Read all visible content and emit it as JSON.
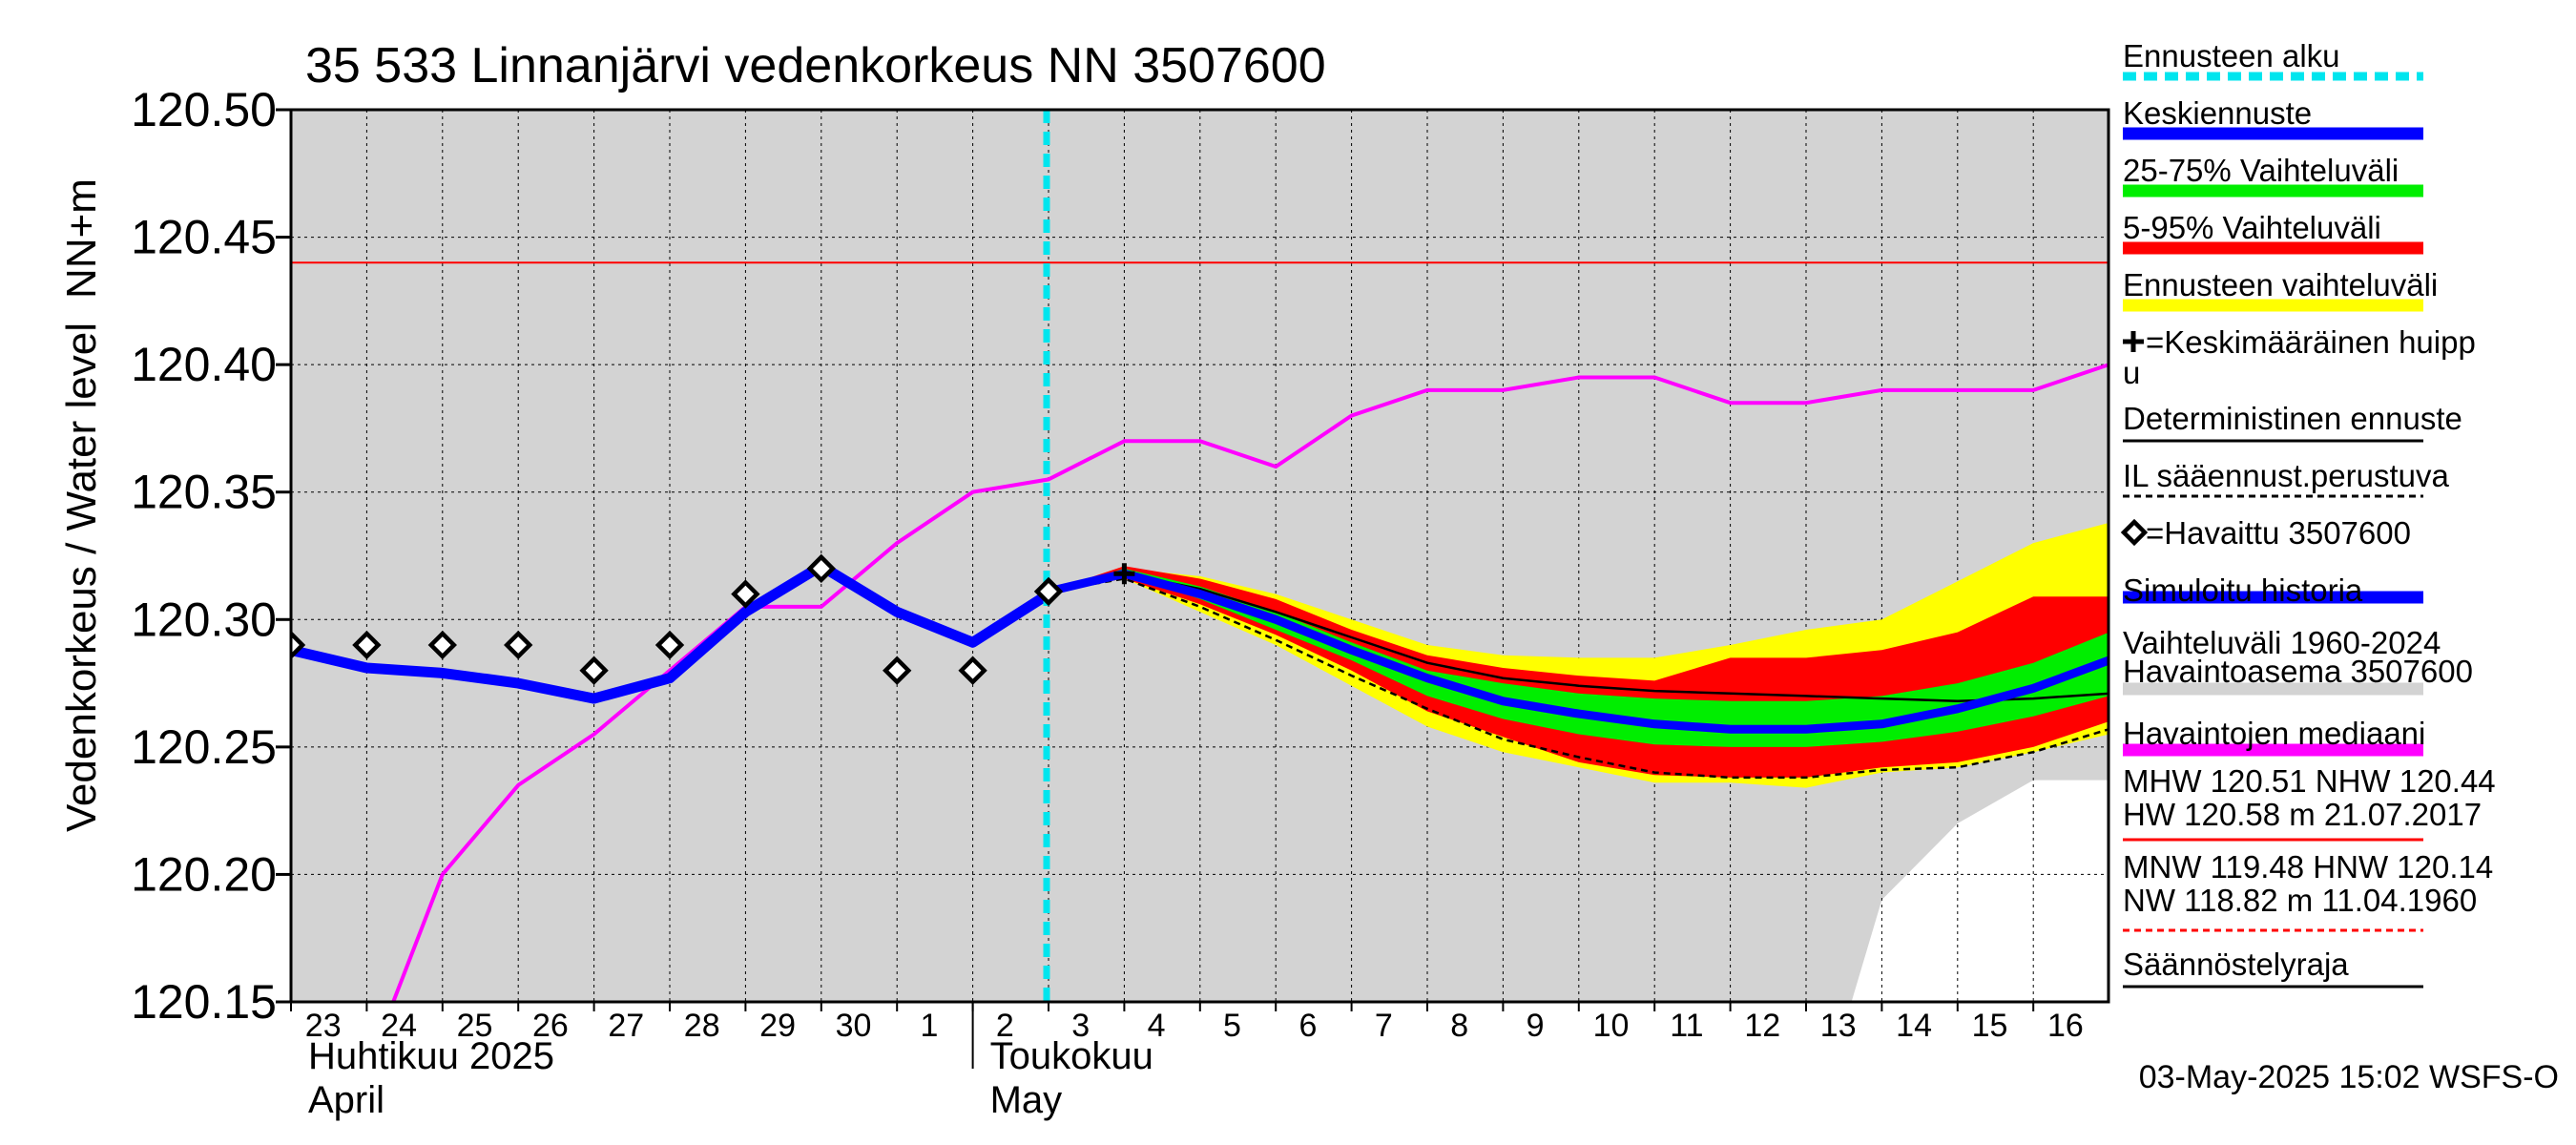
{
  "chart_data": {
    "type": "line",
    "title": "35 533 Linnanjärvi vedenkorkeus NN 3507600",
    "ylabel": "Vedenkorkeus / Water level",
    "ylabel_unit": "NN+m",
    "ylim": [
      120.15,
      120.5
    ],
    "y_ticks": [
      "120.50",
      "120.45",
      "120.40",
      "120.35",
      "120.30",
      "120.25",
      "120.20",
      "120.15"
    ],
    "y_tick_values": [
      120.5,
      120.45,
      120.4,
      120.35,
      120.3,
      120.25,
      120.2,
      120.15
    ],
    "x_day_labels": [
      "23",
      "24",
      "25",
      "26",
      "27",
      "28",
      "29",
      "30",
      "1",
      "2",
      "3",
      "4",
      "5",
      "6",
      "7",
      "8",
      "9",
      "10",
      "11",
      "12",
      "13",
      "14",
      "15",
      "16"
    ],
    "month_labels": [
      {
        "fi": "Huhtikuu  2025",
        "en": "April",
        "day_index": 0
      },
      {
        "fi": "Toukokuu",
        "en": "May",
        "day_index": 9
      }
    ],
    "forecast_start_day": 10,
    "reference_line": {
      "name": "NHW",
      "value": 120.44
    },
    "observed": {
      "name": "Havaittu 3507600",
      "x": [
        0,
        1,
        2,
        3,
        4,
        5,
        6,
        7,
        8,
        9,
        10
      ],
      "y": [
        120.29,
        120.29,
        120.29,
        120.29,
        120.28,
        120.29,
        120.31,
        120.32,
        120.28,
        120.28,
        120.311
      ]
    },
    "simulated_history": {
      "name": "Simuloitu historia",
      "x": [
        0,
        1,
        2,
        3,
        4,
        5,
        6,
        7,
        8,
        9,
        10
      ],
      "y": [
        120.288,
        120.281,
        120.279,
        120.275,
        120.269,
        120.277,
        120.303,
        120.321,
        120.303,
        120.291,
        120.31
      ]
    },
    "median": {
      "name": "Havaintojen mediaani",
      "x": [
        1.35,
        2,
        3,
        4,
        5,
        6,
        7,
        8,
        9,
        10,
        11,
        12,
        13,
        14,
        15,
        16,
        17,
        18,
        19,
        20,
        21,
        22,
        23,
        24
      ],
      "y": [
        120.15,
        120.2,
        120.235,
        120.255,
        120.28,
        120.305,
        120.305,
        120.33,
        120.35,
        120.355,
        120.37,
        120.37,
        120.36,
        120.38,
        120.39,
        120.39,
        120.395,
        120.395,
        120.385,
        120.385,
        120.39,
        120.39,
        120.39,
        120.4
      ]
    },
    "forecast": {
      "x": [
        10,
        11,
        12,
        13,
        14,
        15,
        16,
        17,
        18,
        19,
        20,
        21,
        22,
        23,
        24
      ],
      "ensemble_max": [
        120.311,
        120.32,
        120.317,
        120.31,
        120.3,
        120.29,
        120.286,
        120.285,
        120.285,
        120.29,
        120.296,
        120.3,
        120.315,
        120.33,
        120.338
      ],
      "ensemble_min": [
        120.311,
        120.316,
        120.303,
        120.29,
        120.274,
        120.258,
        120.248,
        120.242,
        120.236,
        120.236,
        120.234,
        120.24,
        120.242,
        120.248,
        120.255
      ],
      "p95": [
        120.311,
        120.321,
        120.316,
        120.308,
        120.296,
        120.286,
        120.281,
        120.278,
        120.276,
        120.285,
        120.285,
        120.288,
        120.295,
        120.309,
        120.309
      ],
      "p5": [
        120.311,
        120.316,
        120.306,
        120.294,
        120.28,
        120.264,
        120.254,
        120.244,
        120.239,
        120.238,
        120.238,
        120.242,
        120.244,
        120.25,
        120.26
      ],
      "p75": [
        120.311,
        120.32,
        120.313,
        120.303,
        120.291,
        120.28,
        120.275,
        120.271,
        120.269,
        120.268,
        120.268,
        120.27,
        120.275,
        120.283,
        120.295
      ],
      "p25": [
        120.311,
        120.318,
        120.308,
        120.296,
        120.284,
        120.27,
        120.261,
        120.255,
        120.251,
        120.25,
        120.25,
        120.252,
        120.256,
        120.262,
        120.27
      ],
      "mean": [
        120.311,
        120.318,
        120.31,
        120.3,
        120.288,
        120.277,
        120.268,
        120.263,
        120.259,
        120.257,
        120.257,
        120.259,
        120.265,
        120.273,
        120.284
      ],
      "deterministic": [
        120.311,
        120.318,
        120.312,
        120.303,
        120.293,
        120.283,
        120.277,
        120.274,
        120.272,
        120.271,
        120.27,
        120.269,
        120.268,
        120.269,
        120.271
      ],
      "weather_based": [
        120.311,
        120.316,
        120.305,
        120.292,
        120.278,
        120.265,
        120.253,
        120.246,
        120.24,
        120.238,
        120.238,
        120.241,
        120.242,
        120.248,
        120.257
      ]
    },
    "mean_peak": {
      "x": 11,
      "y": 120.318
    },
    "historic_range_1960_2024": {
      "x": [
        0,
        7.5,
        8,
        10,
        16,
        17,
        18,
        19,
        20,
        20.6,
        21,
        22,
        23,
        24
      ],
      "upper": [
        120.5,
        120.5,
        120.5,
        120.5,
        120.5,
        120.5,
        120.5,
        120.5,
        120.5,
        120.5,
        120.5,
        120.5,
        120.5,
        120.5
      ],
      "lower": [
        120.15,
        120.15,
        120.15,
        120.15,
        120.15,
        120.15,
        120.15,
        120.15,
        120.15,
        120.15,
        120.19,
        120.22,
        120.237,
        120.237
      ]
    },
    "legend": [
      {
        "label": "Ennusteen alku",
        "color": "#00e5ee",
        "style": "dotted"
      },
      {
        "label": "Keskiennuste",
        "color": "#0000ff",
        "style": "solid"
      },
      {
        "label": "25-75% Vaihteluväli",
        "color": "#00ee00",
        "style": "solid"
      },
      {
        "label": "5-95% Vaihteluväli",
        "color": "#ff0000",
        "style": "solid"
      },
      {
        "label": "Ennusteen vaihteluväli",
        "color": "#ffff00",
        "style": "solid"
      },
      {
        "label": "=Keskimääräinen huipp",
        "label2": "u",
        "color": "#000000",
        "style": "plus"
      },
      {
        "label": "Deterministinen ennuste",
        "color": "#000000",
        "style": "thin"
      },
      {
        "label": "IL sääennust.perustuva",
        "color": "#000000",
        "style": "dashed"
      },
      {
        "label": "=Havaittu 3507600",
        "color": "#000000",
        "style": "diamond"
      },
      {
        "label": "Simuloitu historia",
        "color": "#0000ff",
        "style": "solid"
      },
      {
        "label": "Vaihteluväli 1960-2024",
        "label2": " Havaintoasema 3507600",
        "color": "#d3d3d3",
        "style": "solid"
      },
      {
        "label": "Havaintojen mediaani",
        "color": "#ff00ff",
        "style": "solid"
      },
      {
        "label": "MHW 120.51 NHW 120.44",
        "label2": "HW 120.58 m 21.07.2017",
        "color": "#ff0000",
        "style": "thin"
      },
      {
        "label": "MNW 119.48 HNW 120.14",
        "label2": "NW 118.82 m 11.04.1960",
        "color": "#ff0000",
        "style": "dashed"
      },
      {
        "label": "Säännöstelyraja",
        "color": "#000000",
        "style": "thin"
      }
    ],
    "footer": "03-May-2025 15:02 WSFS-O"
  }
}
